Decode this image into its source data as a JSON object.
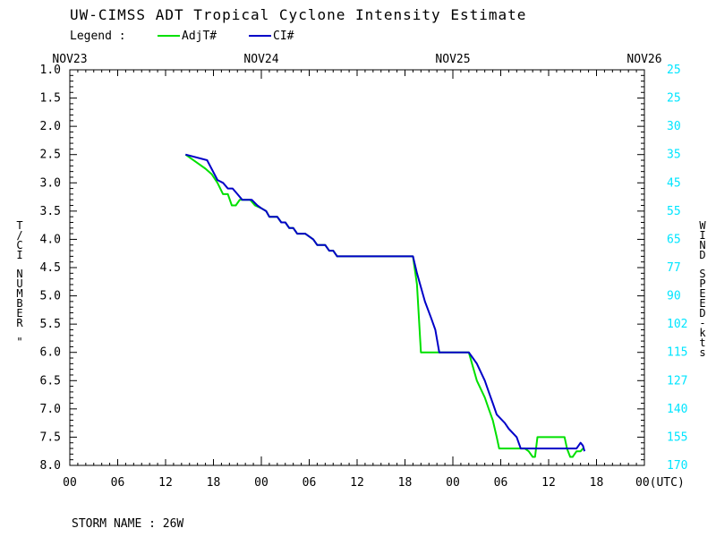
{
  "chart_data": {
    "type": "line",
    "title": "UW-CIMSS ADT Tropical Cyclone Intensity Estimate",
    "legend": {
      "label": "Legend :",
      "placement": "top-left"
    },
    "date_labels": [
      "NOV23",
      "NOV24",
      "NOV25",
      "NOV26"
    ],
    "x_ticks": [
      "00",
      "06",
      "12",
      "18",
      "00",
      "06",
      "12",
      "18",
      "00",
      "06",
      "12",
      "18",
      "00(UTC)"
    ],
    "xlim_hours": [
      0,
      72
    ],
    "y_left_ticks": [
      "1.0",
      "1.5",
      "2.0",
      "2.5",
      "3.0",
      "3.5",
      "4.0",
      "4.5",
      "5.0",
      "5.5",
      "6.0",
      "6.5",
      "7.0",
      "7.5",
      "8.0"
    ],
    "y_right_ticks": [
      "25",
      "25",
      "30",
      "35",
      "45",
      "55",
      "65",
      "77",
      "90",
      "102",
      "115",
      "127",
      "140",
      "155",
      "170"
    ],
    "ylim": [
      1.0,
      8.0
    ],
    "ylabel_left": "T/CI NUMBER \"",
    "ylabel_right": "WIND SPEED-kts",
    "storm_label": "STORM NAME : 26W",
    "colors": {
      "adj": "#00e000",
      "ci": "#0000c8",
      "right_axis": "#00e5ff"
    },
    "series": [
      {
        "name": "AdjT#",
        "color": "#00e000",
        "points": [
          [
            14.5,
            2.5
          ],
          [
            16.0,
            2.65
          ],
          [
            17.0,
            2.75
          ],
          [
            17.8,
            2.85
          ],
          [
            18.5,
            3.0
          ],
          [
            19.2,
            3.2
          ],
          [
            19.8,
            3.2
          ],
          [
            20.3,
            3.4
          ],
          [
            20.8,
            3.4
          ],
          [
            21.3,
            3.3
          ],
          [
            22.0,
            3.3
          ],
          [
            22.6,
            3.3
          ],
          [
            23.2,
            3.4
          ],
          [
            24.0,
            3.45
          ],
          [
            24.6,
            3.5
          ],
          [
            25.0,
            3.6
          ],
          [
            26.0,
            3.6
          ],
          [
            26.5,
            3.7
          ],
          [
            27.0,
            3.7
          ],
          [
            27.5,
            3.8
          ],
          [
            28.0,
            3.8
          ],
          [
            28.5,
            3.9
          ],
          [
            29.5,
            3.9
          ],
          [
            30.5,
            4.0
          ],
          [
            31.0,
            4.1
          ],
          [
            32.0,
            4.1
          ],
          [
            32.5,
            4.2
          ],
          [
            33.0,
            4.2
          ],
          [
            33.5,
            4.3
          ],
          [
            43.0,
            4.3
          ],
          [
            43.5,
            4.8
          ],
          [
            44.0,
            6.0
          ],
          [
            47.0,
            6.0
          ],
          [
            48.0,
            6.0
          ],
          [
            50.0,
            6.0
          ],
          [
            51.0,
            6.5
          ],
          [
            52.0,
            6.8
          ],
          [
            52.5,
            7.0
          ],
          [
            53.0,
            7.2
          ],
          [
            53.5,
            7.5
          ],
          [
            53.8,
            7.7
          ],
          [
            57.0,
            7.7
          ],
          [
            57.5,
            7.75
          ],
          [
            58.0,
            7.85
          ],
          [
            58.3,
            7.85
          ],
          [
            58.6,
            7.5
          ],
          [
            62.0,
            7.5
          ],
          [
            62.3,
            7.7
          ],
          [
            62.7,
            7.85
          ],
          [
            63.0,
            7.85
          ],
          [
            63.5,
            7.75
          ],
          [
            64.0,
            7.75
          ],
          [
            64.3,
            7.7
          ]
        ]
      },
      {
        "name": "CI#",
        "color": "#0000c8",
        "points": [
          [
            14.5,
            2.5
          ],
          [
            17.2,
            2.6
          ],
          [
            18.5,
            2.95
          ],
          [
            19.2,
            3.0
          ],
          [
            19.8,
            3.1
          ],
          [
            20.4,
            3.1
          ],
          [
            21.0,
            3.2
          ],
          [
            21.6,
            3.3
          ],
          [
            22.8,
            3.3
          ],
          [
            23.5,
            3.4
          ],
          [
            24.0,
            3.45
          ],
          [
            24.6,
            3.5
          ],
          [
            25.0,
            3.6
          ],
          [
            26.0,
            3.6
          ],
          [
            26.5,
            3.7
          ],
          [
            27.0,
            3.7
          ],
          [
            27.5,
            3.8
          ],
          [
            28.0,
            3.8
          ],
          [
            28.5,
            3.9
          ],
          [
            29.5,
            3.9
          ],
          [
            30.5,
            4.0
          ],
          [
            31.0,
            4.1
          ],
          [
            32.0,
            4.1
          ],
          [
            32.5,
            4.2
          ],
          [
            33.0,
            4.2
          ],
          [
            33.5,
            4.3
          ],
          [
            43.0,
            4.3
          ],
          [
            43.5,
            4.6
          ],
          [
            44.5,
            5.1
          ],
          [
            45.3,
            5.4
          ],
          [
            45.8,
            5.6
          ],
          [
            46.3,
            6.0
          ],
          [
            50.0,
            6.0
          ],
          [
            50.5,
            6.1
          ],
          [
            51.0,
            6.2
          ],
          [
            52.0,
            6.5
          ],
          [
            52.5,
            6.7
          ],
          [
            53.0,
            6.9
          ],
          [
            53.5,
            7.1
          ],
          [
            54.5,
            7.25
          ],
          [
            55.0,
            7.35
          ],
          [
            56.0,
            7.5
          ],
          [
            56.5,
            7.7
          ],
          [
            63.5,
            7.7
          ],
          [
            64.0,
            7.6
          ],
          [
            64.3,
            7.65
          ],
          [
            64.5,
            7.75
          ]
        ]
      }
    ]
  }
}
